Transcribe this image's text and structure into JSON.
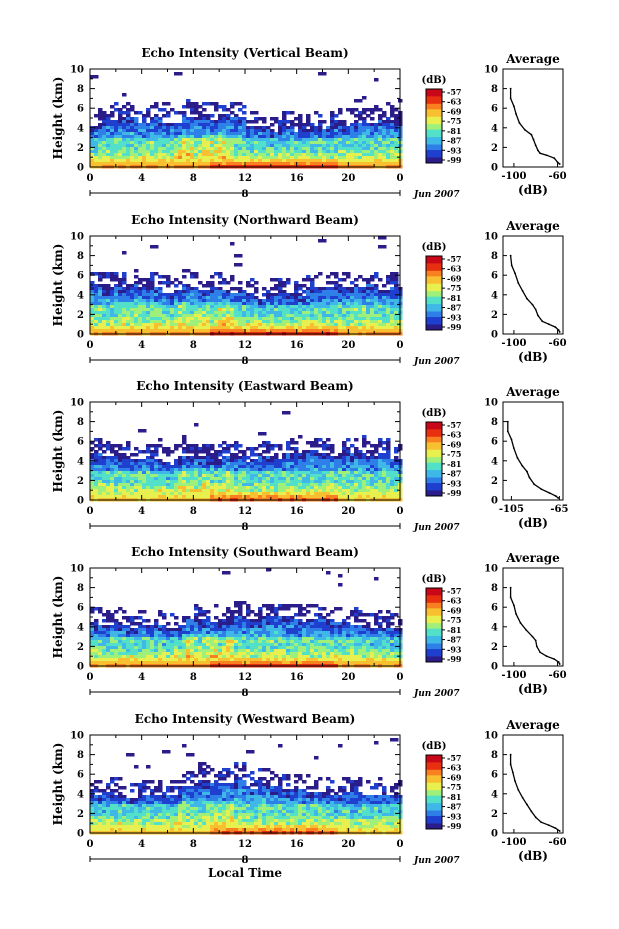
{
  "chart_data": [
    {
      "type": "heatmap",
      "title": "Echo Intensity (Vertical Beam)",
      "ylabel": "Height (km)",
      "xlim": [
        0,
        24
      ],
      "ylim": [
        0,
        10
      ],
      "x_ticks": [
        "0",
        "4",
        "8",
        "12",
        "16",
        "20",
        "0"
      ],
      "y_ticks": [
        "0",
        "2",
        "4",
        "6",
        "8",
        "10"
      ],
      "day_label": "8",
      "date_label": "Jun 2007",
      "colorbar": {
        "unit": "(dB)",
        "labels": [
          "-57",
          "-63",
          "-69",
          "-75",
          "-81",
          "-87",
          "-93",
          "-99"
        ],
        "range": [
          -99,
          -57
        ]
      },
      "profile": {
        "title": "Average",
        "xlabel": "(dB)",
        "x_ticks": [
          "-100",
          "-60"
        ],
        "xlim": [
          -110,
          -55
        ],
        "points": [
          [
            -103,
            8
          ],
          [
            -103,
            7
          ],
          [
            -100,
            6.2
          ],
          [
            -98,
            5.4
          ],
          [
            -95,
            4.5
          ],
          [
            -90,
            3.8
          ],
          [
            -84,
            3.3
          ],
          [
            -82,
            2.8
          ],
          [
            -80,
            2.2
          ],
          [
            -78,
            1.7
          ],
          [
            -76,
            1.4
          ],
          [
            -70,
            1.2
          ],
          [
            -63,
            0.9
          ],
          [
            -60,
            0.5
          ],
          [
            -58,
            0.3
          ]
        ]
      },
      "activity": 1.0
    },
    {
      "type": "heatmap",
      "title": "Echo Intensity (Northward Beam)",
      "ylabel": "Height (km)",
      "xlim": [
        0,
        24
      ],
      "ylim": [
        0,
        10
      ],
      "x_ticks": [
        "0",
        "4",
        "8",
        "12",
        "16",
        "20",
        "0"
      ],
      "y_ticks": [
        "0",
        "2",
        "4",
        "6",
        "8",
        "10"
      ],
      "day_label": "8",
      "date_label": "Jun 2007",
      "colorbar": {
        "unit": "(dB)",
        "labels": [
          "-57",
          "-63",
          "-69",
          "-75",
          "-81",
          "-87",
          "-93",
          "-99"
        ],
        "range": [
          -99,
          -57
        ]
      },
      "profile": {
        "title": "Average",
        "xlabel": "(dB)",
        "x_ticks": [
          "-100",
          "-60"
        ],
        "xlim": [
          -110,
          -55
        ],
        "points": [
          [
            -103,
            8
          ],
          [
            -102,
            7
          ],
          [
            -99,
            6.2
          ],
          [
            -96,
            5.2
          ],
          [
            -92,
            4.4
          ],
          [
            -88,
            3.6
          ],
          [
            -83,
            3.0
          ],
          [
            -80,
            2.5
          ],
          [
            -78,
            1.9
          ],
          [
            -74,
            1.3
          ],
          [
            -68,
            1.0
          ],
          [
            -62,
            0.7
          ],
          [
            -59,
            0.4
          ],
          [
            -58,
            0.2
          ]
        ]
      },
      "activity": 1.05
    },
    {
      "type": "heatmap",
      "title": "Echo Intensity (Eastward Beam)",
      "ylabel": "Height (km)",
      "xlim": [
        0,
        24
      ],
      "ylim": [
        0,
        10
      ],
      "x_ticks": [
        "0",
        "4",
        "8",
        "12",
        "16",
        "20",
        "0"
      ],
      "y_ticks": [
        "0",
        "2",
        "4",
        "6",
        "8",
        "10"
      ],
      "day_label": "8",
      "date_label": "Jun 2007",
      "colorbar": {
        "unit": "(dB)",
        "labels": [
          "-57",
          "-63",
          "-69",
          "-75",
          "-81",
          "-87",
          "-93",
          "-99"
        ],
        "range": [
          -99,
          -57
        ]
      },
      "profile": {
        "title": "Average",
        "xlabel": "(dB)",
        "x_ticks": [
          "-105",
          "-65"
        ],
        "xlim": [
          -112,
          -62
        ],
        "points": [
          [
            -108,
            8
          ],
          [
            -108,
            7
          ],
          [
            -105,
            6.2
          ],
          [
            -103,
            5.3
          ],
          [
            -100,
            4.3
          ],
          [
            -96,
            3.5
          ],
          [
            -92,
            2.9
          ],
          [
            -90,
            2.3
          ],
          [
            -86,
            1.6
          ],
          [
            -80,
            1.1
          ],
          [
            -73,
            0.7
          ],
          [
            -68,
            0.4
          ],
          [
            -66,
            0.2
          ]
        ]
      },
      "activity": 0.8
    },
    {
      "type": "heatmap",
      "title": "Echo Intensity (Southward Beam)",
      "ylabel": "Height (km)",
      "xlim": [
        0,
        24
      ],
      "ylim": [
        0,
        10
      ],
      "x_ticks": [
        "0",
        "4",
        "8",
        "12",
        "16",
        "20",
        "0"
      ],
      "y_ticks": [
        "0",
        "2",
        "4",
        "6",
        "8",
        "10"
      ],
      "day_label": "8",
      "date_label": "Jun 2007",
      "colorbar": {
        "unit": "(dB)",
        "labels": [
          "-57",
          "-63",
          "-69",
          "-75",
          "-81",
          "-87",
          "-93",
          "-99"
        ],
        "range": [
          -99,
          -57
        ]
      },
      "profile": {
        "title": "Average",
        "xlabel": "(dB)",
        "x_ticks": [
          "-100",
          "-60"
        ],
        "xlim": [
          -110,
          -55
        ],
        "points": [
          [
            -103,
            8
          ],
          [
            -103,
            7
          ],
          [
            -100,
            6.2
          ],
          [
            -98,
            5.3
          ],
          [
            -94,
            4.4
          ],
          [
            -89,
            3.7
          ],
          [
            -83,
            3.0
          ],
          [
            -80,
            2.6
          ],
          [
            -79,
            2.0
          ],
          [
            -76,
            1.4
          ],
          [
            -70,
            1.0
          ],
          [
            -63,
            0.7
          ],
          [
            -59,
            0.4
          ],
          [
            -58,
            0.2
          ]
        ]
      },
      "activity": 1.0
    },
    {
      "type": "heatmap",
      "title": "Echo Intensity (Westward Beam)",
      "ylabel": "Height (km)",
      "xlabel": "Local Time",
      "xlim": [
        0,
        24
      ],
      "ylim": [
        0,
        10
      ],
      "x_ticks": [
        "0",
        "4",
        "8",
        "12",
        "16",
        "20",
        "0"
      ],
      "y_ticks": [
        "0",
        "2",
        "4",
        "6",
        "8",
        "10"
      ],
      "day_label": "8",
      "date_label": "Jun 2007",
      "colorbar": {
        "unit": "(dB)",
        "labels": [
          "-57",
          "-63",
          "-69",
          "-75",
          "-81",
          "-87",
          "-93",
          "-99"
        ],
        "range": [
          -99,
          -57
        ]
      },
      "profile": {
        "title": "Average",
        "xlabel": "(dB)",
        "x_ticks": [
          "-100",
          "-60"
        ],
        "xlim": [
          -110,
          -55
        ],
        "points": [
          [
            -103,
            8
          ],
          [
            -103,
            7
          ],
          [
            -101,
            6.2
          ],
          [
            -99,
            5.3
          ],
          [
            -96,
            4.4
          ],
          [
            -92,
            3.6
          ],
          [
            -88,
            2.9
          ],
          [
            -84,
            2.2
          ],
          [
            -80,
            1.6
          ],
          [
            -75,
            1.1
          ],
          [
            -68,
            0.8
          ],
          [
            -62,
            0.5
          ],
          [
            -58,
            0.2
          ]
        ]
      },
      "activity": 0.85
    }
  ],
  "colors": {
    "scale": [
      "#2a1d8a",
      "#1f3fcf",
      "#2f7fe8",
      "#3fb8e8",
      "#52e0c8",
      "#9ef07a",
      "#e8f050",
      "#f8c030",
      "#f88020",
      "#e83010",
      "#c80818"
    ]
  }
}
